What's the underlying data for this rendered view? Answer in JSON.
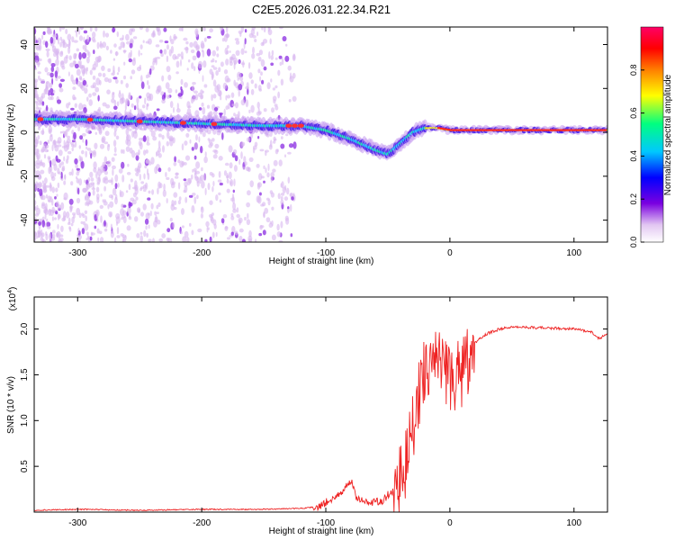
{
  "title": "C2E5.2026.031.22.34.R21",
  "chart_data": [
    {
      "type": "heatmap",
      "xlabel": "Height of straight line (km)",
      "ylabel": "Frequency (Hz)",
      "xlim": [
        -335,
        127
      ],
      "ylim": [
        -50,
        48
      ],
      "xticks": [
        -300,
        -200,
        -100,
        0,
        100
      ],
      "yticks": [
        -40,
        -20,
        0,
        20,
        40
      ],
      "colorbar": {
        "label": "Normalized spectral amplitude",
        "range": [
          0,
          1
        ],
        "ticks": [
          0.0,
          0.2,
          0.4,
          0.6,
          0.8
        ],
        "tick_labels": [
          "0.0",
          "0.2",
          "0.4",
          "0.6",
          "0.8"
        ],
        "colors": [
          "#ffffff",
          "#e2c6f2",
          "#7a00e0",
          "#0000ff",
          "#00c8ff",
          "#00ff80",
          "#ffff00",
          "#ff8000",
          "#ff0000",
          "#ff0066"
        ]
      },
      "ridge": {
        "x": [
          -335,
          -300,
          -250,
          -200,
          -150,
          -120,
          -100,
          -80,
          -60,
          -50,
          -40,
          -30,
          -20,
          -10,
          0,
          20,
          50,
          80,
          100,
          127
        ],
        "y": [
          6,
          6,
          5,
          4,
          3,
          3,
          1,
          -3,
          -8,
          -10,
          -5,
          0,
          2,
          2,
          1,
          1,
          1,
          1,
          1,
          1
        ]
      }
    },
    {
      "type": "line",
      "xlabel": "Height of straight line (km)",
      "ylabel": "SNR (10 * v/v)",
      "y_multiplier": "(x10",
      "y_multiplier_exp": "4",
      "y_multiplier_close": ")",
      "xlim": [
        -335,
        127
      ],
      "ylim": [
        0,
        2.35
      ],
      "xticks": [
        -300,
        -200,
        -100,
        0,
        100
      ],
      "yticks": [
        0.5,
        1.0,
        1.5,
        2.0
      ],
      "ytick_labels": [
        "0.5",
        "1.0",
        "1.5",
        "2.0"
      ],
      "color": "#ee2222",
      "series": [
        {
          "x": [
            -335,
            -300,
            -250,
            -200,
            -150,
            -120,
            -105,
            -95,
            -85,
            -80,
            -75,
            -65,
            -55,
            -45,
            -40,
            -35,
            -30,
            -25,
            -20,
            -15,
            -10,
            -5,
            0,
            5,
            10,
            15,
            20,
            25,
            30,
            40,
            50,
            60,
            80,
            100,
            110,
            115,
            120,
            127
          ],
          "y": [
            0.02,
            0.03,
            0.02,
            0.03,
            0.03,
            0.04,
            0.06,
            0.15,
            0.25,
            0.35,
            0.15,
            0.1,
            0.12,
            0.25,
            0.35,
            0.6,
            0.9,
            1.3,
            1.6,
            1.75,
            1.7,
            1.55,
            1.45,
            1.5,
            1.55,
            1.7,
            1.85,
            1.9,
            1.95,
            2.0,
            2.02,
            2.02,
            2.01,
            2.0,
            1.98,
            1.96,
            1.9,
            1.94
          ]
        }
      ]
    }
  ]
}
